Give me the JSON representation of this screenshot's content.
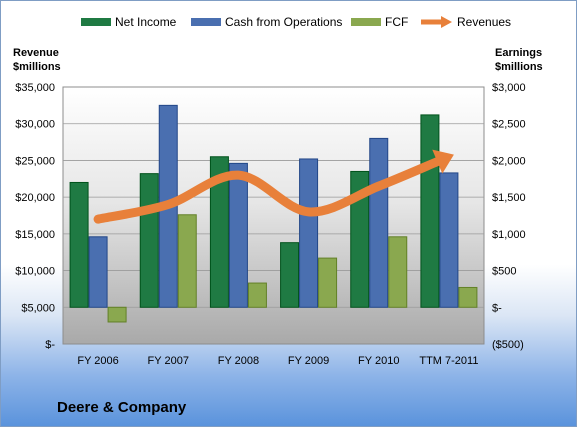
{
  "chart_data": {
    "type": "bar",
    "title": "",
    "categories": [
      "FY 2006",
      "FY 2007",
      "FY 2008",
      "FY 2009",
      "FY 2010",
      "TTM 7-2011"
    ],
    "series": [
      {
        "name": "Net Income",
        "axis": "right",
        "color": "#1f7a43",
        "values": [
          1700,
          1820,
          2050,
          880,
          1850,
          2620
        ]
      },
      {
        "name": "Cash from Operations",
        "axis": "right",
        "color": "#4a6fb0",
        "values": [
          960,
          2750,
          1960,
          2020,
          2300,
          1830
        ]
      },
      {
        "name": "FCF",
        "axis": "right",
        "color": "#8aa84f",
        "values": [
          -200,
          1260,
          330,
          670,
          960,
          270
        ]
      },
      {
        "name": "Revenues",
        "axis": "left",
        "type": "line",
        "color": "#e8803a",
        "values": [
          17000,
          19000,
          23000,
          18000,
          21500,
          25500
        ]
      }
    ],
    "left_axis": {
      "label_line1": "Revenue",
      "label_line2": "$millions",
      "range": [
        0,
        35000
      ],
      "ticks": [
        "$-",
        "$5,000",
        "$10,000",
        "$15,000",
        "$20,000",
        "$25,000",
        "$30,000",
        "$35,000"
      ]
    },
    "right_axis": {
      "label_line1": "Earnings",
      "label_line2": "$millions",
      "range": [
        -500,
        3000
      ],
      "ticks": [
        "($500)",
        "$-",
        "$500",
        "$1,000",
        "$1,500",
        "$2,000",
        "$2,500",
        "$3,000"
      ]
    },
    "legend_position": "top",
    "grid": true
  },
  "company_name": "Deere & Company"
}
